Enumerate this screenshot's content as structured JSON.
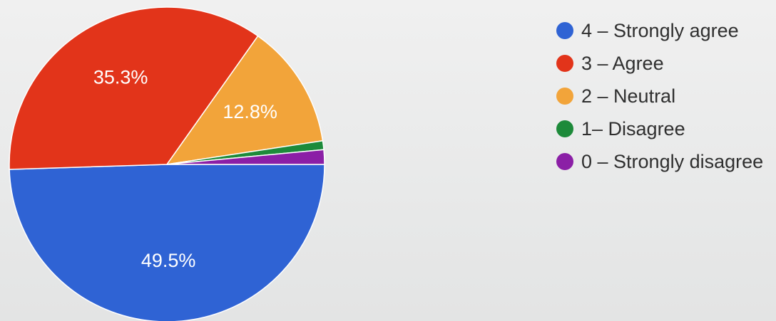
{
  "chart_data": {
    "type": "pie",
    "slices": [
      {
        "label": "4 – Strongly agree",
        "value": 49.5,
        "value_label": "49.5%",
        "color": "#2f63d4"
      },
      {
        "label": "3 – Agree",
        "value": 35.3,
        "value_label": "35.3%",
        "color": "#e2341a"
      },
      {
        "label": "2 – Neutral",
        "value": 12.8,
        "value_label": "12.8%",
        "color": "#f2a43a"
      },
      {
        "label": "1– Disagree",
        "value": 0.9,
        "value_label": "",
        "color": "#1d8a3a"
      },
      {
        "label": "0 – Strongly disagree",
        "value": 1.5,
        "value_label": "",
        "color": "#8b1fa6"
      }
    ],
    "legend_position": "right"
  }
}
